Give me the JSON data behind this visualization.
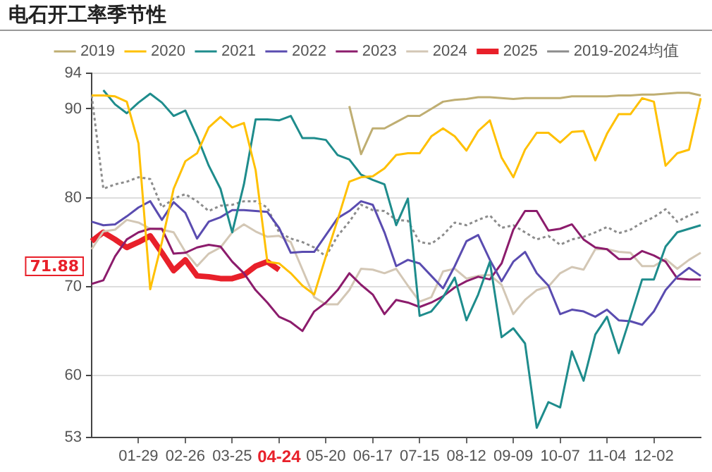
{
  "chart_data": {
    "type": "line",
    "title": "电石开工率季节性",
    "categories": [
      null,
      null,
      null,
      null,
      "01-29",
      null,
      null,
      null,
      "02-26",
      null,
      null,
      null,
      "03-25",
      null,
      null,
      null,
      "04-24",
      null,
      null,
      null,
      "05-20",
      null,
      null,
      null,
      "06-17",
      null,
      null,
      null,
      "07-15",
      null,
      null,
      null,
      "08-12",
      null,
      null,
      null,
      "09-09",
      null,
      null,
      null,
      "10-07",
      null,
      null,
      null,
      "11-04",
      null,
      null,
      null,
      "12-02",
      null,
      null,
      null,
      null
    ],
    "series": [
      {
        "name": "2019",
        "color": "#bfae72",
        "values": [
          null,
          null,
          null,
          null,
          null,
          null,
          null,
          null,
          null,
          null,
          null,
          null,
          null,
          null,
          null,
          null,
          null,
          null,
          null,
          null,
          null,
          null,
          90.3,
          84.9,
          87.8,
          87.8,
          88.5,
          89.2,
          89.2,
          90.0,
          90.8,
          91.0,
          91.1,
          91.3,
          91.3,
          91.2,
          91.1,
          91.2,
          91.2,
          91.2,
          91.2,
          91.4,
          91.4,
          91.4,
          91.4,
          91.5,
          91.5,
          91.6,
          91.6,
          91.7,
          91.8,
          91.8,
          91.5
        ]
      },
      {
        "name": "2020",
        "color": "#ffc000",
        "values": [
          91.5,
          91.5,
          91.4,
          90.8,
          86.1,
          69.7,
          75.0,
          81.0,
          84.1,
          85.0,
          87.9,
          89.1,
          87.9,
          88.4,
          83.1,
          72.8,
          72.6,
          71.5,
          70.1,
          69.1,
          73.4,
          77.5,
          81.8,
          82.3,
          82.4,
          83.3,
          84.8,
          85.0,
          85.0,
          86.9,
          87.8,
          86.9,
          85.3,
          87.5,
          88.7,
          84.5,
          82.3,
          85.4,
          87.3,
          87.3,
          86.2,
          87.4,
          87.5,
          84.2,
          87.2,
          89.4,
          89.4,
          91.2,
          90.8,
          83.6,
          85.0,
          85.4,
          91.2
        ]
      },
      {
        "name": "2021",
        "color": "#1e8c8c",
        "values": [
          null,
          92.1,
          90.5,
          89.5,
          90.7,
          91.7,
          90.7,
          89.2,
          89.8,
          86.9,
          83.6,
          81.0,
          76.1,
          81.5,
          88.8,
          88.8,
          88.7,
          89.2,
          86.7,
          86.7,
          86.5,
          84.8,
          84.3,
          82.6,
          82.0,
          81.5,
          76.9,
          79.9,
          66.7,
          67.2,
          68.8,
          71.0,
          66.2,
          69.1,
          72.8,
          64.3,
          65.3,
          63.6,
          54.1,
          57.0,
          56.4,
          62.7,
          59.4,
          64.6,
          66.6,
          62.5,
          66.6,
          70.8,
          70.8,
          74.5,
          76.1,
          76.5,
          76.9
        ]
      },
      {
        "name": "2022",
        "color": "#5a4cb0",
        "values": [
          77.3,
          76.9,
          77.0,
          77.9,
          78.9,
          79.6,
          77.5,
          79.5,
          78.3,
          75.4,
          77.3,
          77.8,
          78.6,
          78.6,
          78.5,
          78.4,
          76.6,
          73.8,
          73.9,
          73.9,
          75.8,
          77.7,
          78.5,
          79.6,
          79.2,
          76.1,
          72.3,
          73.0,
          72.6,
          71.2,
          69.8,
          72.3,
          75.1,
          75.8,
          73.0,
          70.6,
          72.8,
          73.9,
          71.5,
          70.1,
          66.9,
          67.4,
          67.2,
          66.6,
          67.4,
          66.2,
          66.1,
          65.7,
          67.2,
          69.6,
          71.1,
          72.1,
          71.2
        ]
      },
      {
        "name": "2023",
        "color": "#8c1c6c",
        "values": [
          70.3,
          70.7,
          73.4,
          75.3,
          76.1,
          76.5,
          76.5,
          73.7,
          73.8,
          74.4,
          74.7,
          74.5,
          72.8,
          71.5,
          69.6,
          68.2,
          66.6,
          66.0,
          65.0,
          67.2,
          68.2,
          69.6,
          71.5,
          70.2,
          69.1,
          66.9,
          68.5,
          68.2,
          67.7,
          68.2,
          68.9,
          69.9,
          70.6,
          71.1,
          70.8,
          72.6,
          76.4,
          78.5,
          78.5,
          76.3,
          76.5,
          77.0,
          75.3,
          74.4,
          74.2,
          73.1,
          73.1,
          74.0,
          73.5,
          72.8,
          70.9,
          70.8,
          70.8
        ]
      },
      {
        "name": "2024",
        "color": "#d3c7b5",
        "values": [
          74.2,
          76.2,
          76.4,
          77.5,
          77.2,
          76.5,
          76.4,
          76.1,
          73.9,
          72.3,
          73.7,
          74.4,
          76.1,
          77.0,
          76.2,
          75.6,
          75.7,
          75.0,
          71.9,
          68.8,
          68.0,
          68.0,
          69.6,
          72.0,
          71.9,
          71.5,
          72.0,
          70.1,
          68.3,
          68.8,
          71.7,
          72.0,
          70.9,
          71.2,
          71.3,
          70.2,
          66.9,
          68.5,
          69.6,
          70.0,
          71.5,
          72.2,
          71.9,
          74.2,
          74.2,
          73.9,
          73.8,
          72.3,
          72.3,
          73.1,
          72.0,
          73.0,
          73.8
        ]
      },
      {
        "name": "2025",
        "color": "#e8202a",
        "values": [
          75.1,
          76.1,
          75.3,
          74.4,
          75.0,
          75.7,
          73.8,
          71.8,
          73.0,
          71.2,
          71.1,
          70.9,
          70.9,
          71.3,
          72.3,
          72.8,
          71.88,
          null,
          null,
          null,
          null,
          null,
          null,
          null,
          null,
          null,
          null,
          null,
          null,
          null,
          null,
          null,
          null,
          null,
          null,
          null,
          null,
          null,
          null,
          null,
          null,
          null,
          null,
          null,
          null,
          null,
          null,
          null,
          null,
          null,
          null,
          null,
          null
        ]
      },
      {
        "name": "2019-2024均值",
        "color": "#8c8c8c",
        "line_style": "dotted",
        "values": [
          91.5,
          81.0,
          81.5,
          81.8,
          82.3,
          82.1,
          78.9,
          79.9,
          80.4,
          79.6,
          78.5,
          79.1,
          79.2,
          79.6,
          79.6,
          78.9,
          76.1,
          75.4,
          75.0,
          74.4,
          73.4,
          75.7,
          77.3,
          79.2,
          78.6,
          78.5,
          77.5,
          77.4,
          75.0,
          74.8,
          75.8,
          77.2,
          76.9,
          77.5,
          78.0,
          76.6,
          76.9,
          76.1,
          75.3,
          75.7,
          74.7,
          75.3,
          75.6,
          76.1,
          76.7,
          76.0,
          76.4,
          77.2,
          77.8,
          78.7,
          77.3,
          78.0,
          78.5
        ]
      }
    ],
    "ylim": [
      53,
      94
    ],
    "yticks": [
      53,
      60,
      70,
      80,
      90,
      94
    ],
    "grid": "y",
    "legend": "top",
    "marker": "none",
    "line_style": "solid",
    "annotations": [
      "71.88"
    ]
  }
}
